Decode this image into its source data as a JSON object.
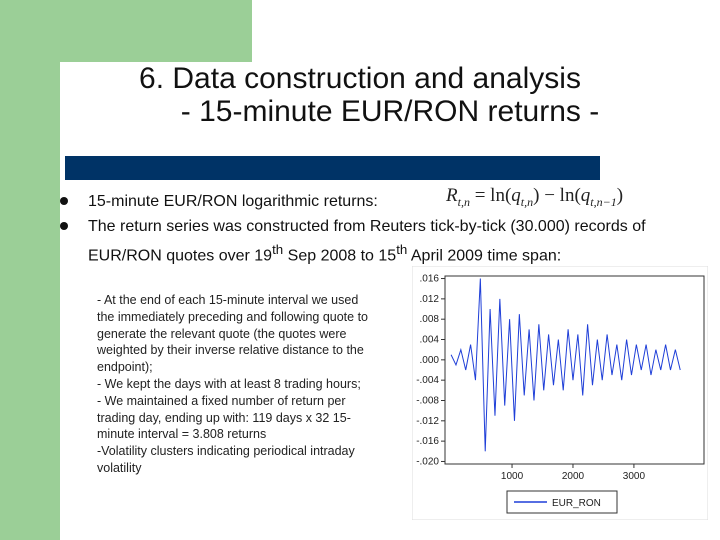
{
  "title": [
    "6. Data construction and analysis",
    "- 15-minute EUR/RON returns -"
  ],
  "bullets": [
    "15-minute EUR/RON logarithmic returns:",
    [
      "The return series was constructed from Reuters tick-by-tick (30.000) records of EUR/RON quotes over 19",
      "th",
      " Sep 2008 to 15",
      "th",
      " April 2009 time span:"
    ]
  ],
  "formula": {
    "lhs": "R",
    "lhs_sub": "t,n",
    "eq": " = ln(",
    "q1": "q",
    "q1_sub": "t,n",
    "mid": ") − ln(",
    "q2": "q",
    "q2_sub": "t,n−1",
    "end": ")"
  },
  "notes": [
    "- At the end of each 15-minute interval we used",
    "the immediately preceding and following quote to",
    "generate the relevant quote (the quotes were",
    "weighted by their inverse relative distance to the",
    "endpoint);",
    "- We kept the days with at least 8 trading hours;",
    "- We maintained a fixed number of return per",
    "trading day, ending up with: 119 days x 32 15-",
    "minute interval = 3.808 returns",
    "-Volatility clusters indicating periodical intraday",
    "volatility"
  ],
  "chart_data": {
    "type": "line",
    "x": [
      0,
      80,
      160,
      240,
      320,
      400,
      480,
      560,
      640,
      720,
      800,
      880,
      960,
      1040,
      1120,
      1200,
      1280,
      1360,
      1440,
      1520,
      1600,
      1680,
      1760,
      1840,
      1920,
      2000,
      2080,
      2160,
      2240,
      2320,
      2400,
      2480,
      2560,
      2640,
      2720,
      2800,
      2880,
      2960,
      3040,
      3120,
      3200,
      3280,
      3360,
      3440,
      3520,
      3600,
      3680,
      3760
    ],
    "series": [
      {
        "name": "EUR_RON",
        "color": "#1f3fd8",
        "values": [
          0.001,
          -0.001,
          0.002,
          -0.002,
          0.003,
          -0.004,
          0.016,
          -0.018,
          0.01,
          -0.011,
          0.012,
          -0.009,
          0.008,
          -0.012,
          0.009,
          -0.007,
          0.006,
          -0.008,
          0.007,
          -0.006,
          0.005,
          -0.005,
          0.004,
          -0.006,
          0.006,
          -0.004,
          0.005,
          -0.007,
          0.007,
          -0.005,
          0.004,
          -0.004,
          0.005,
          -0.003,
          0.003,
          -0.004,
          0.004,
          -0.003,
          0.003,
          -0.002,
          0.003,
          -0.003,
          0.002,
          -0.002,
          0.003,
          -0.002,
          0.002,
          -0.002
        ]
      }
    ],
    "xlim": [
      -100,
      4150
    ],
    "ylim": [
      -0.0205,
      0.0165
    ],
    "xticks": [
      1000,
      2000,
      3000
    ],
    "yticks": [
      {
        "value": 0.016,
        "label": ".016"
      },
      {
        "value": 0.012,
        "label": ".012"
      },
      {
        "value": 0.008,
        "label": ".008"
      },
      {
        "value": 0.004,
        "label": ".004"
      },
      {
        "value": 0,
        "label": ".000"
      },
      {
        "value": -0.004,
        "label": "-.004"
      },
      {
        "value": -0.008,
        "label": "-.008"
      },
      {
        "value": -0.012,
        "label": "-.012"
      },
      {
        "value": -0.016,
        "label": "-.016"
      },
      {
        "value": -0.02,
        "label": "-.020"
      }
    ],
    "legend": "bottom"
  }
}
